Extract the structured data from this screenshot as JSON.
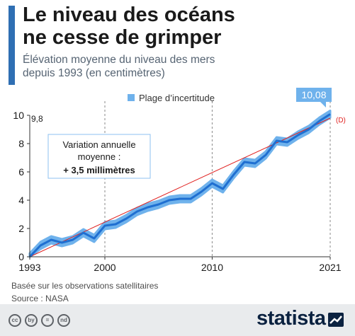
{
  "header": {
    "title_line1": "Le niveau des océans",
    "title_line2": "ne cesse de grimper",
    "subtitle_line1": "Élévation moyenne du niveau des mers",
    "subtitle_line2": "depuis 1993 (en centimètres)"
  },
  "chart_data": {
    "type": "area",
    "title": "Le niveau des océans ne cesse de grimper",
    "subtitle": "Élévation moyenne du niveau des mers depuis 1993 (en centimètres)",
    "xlim": [
      1993,
      2021
    ],
    "ylim": [
      0,
      10
    ],
    "x_ticks": [
      1993,
      2000,
      2010,
      2021
    ],
    "y_ticks": [
      0,
      2,
      4,
      6,
      8,
      10
    ],
    "grid": "vertical dashed at 2000, 2010, 2021",
    "legend": {
      "label": "Plage d’incertitude",
      "placement": "top-right"
    },
    "series": [
      {
        "x": [
          1993,
          1994,
          1995,
          1996,
          1997,
          1998,
          1999,
          2000,
          2001,
          2002,
          2003,
          2004,
          2005,
          2006,
          2007,
          2008,
          2009,
          2010,
          2011,
          2012,
          2013,
          2014,
          2015,
          2016,
          2017,
          2018,
          2019,
          2020,
          2021
        ],
        "y": [
          0.0,
          0.8,
          1.2,
          1.0,
          1.2,
          1.7,
          1.3,
          2.2,
          2.3,
          2.7,
          3.2,
          3.5,
          3.7,
          4.0,
          4.1,
          4.1,
          4.6,
          5.2,
          4.8,
          5.8,
          6.7,
          6.6,
          7.2,
          8.2,
          8.1,
          8.6,
          9.0,
          9.6,
          10.08
        ],
        "uncertainty_cm": 0.25,
        "color": "#1f6fd1",
        "band_color": "#6fb2ec"
      }
    ],
    "trend": {
      "x": [
        1993,
        2021
      ],
      "y": [
        0,
        9.8
      ],
      "color": "#e0201f",
      "end_label": "(D)"
    },
    "annotations": {
      "start_value": "9,8",
      "end_value": "10,08",
      "box_line1": "Variation annuelle",
      "box_line2": "moyenne :",
      "box_line3": "+ 3,5 millimètres"
    }
  },
  "footer": {
    "note": "Basée sur les observations satellitaires",
    "source": "Source : NASA",
    "brand": "statista",
    "license_icons": [
      "cc",
      "by",
      "=",
      "nd"
    ]
  }
}
